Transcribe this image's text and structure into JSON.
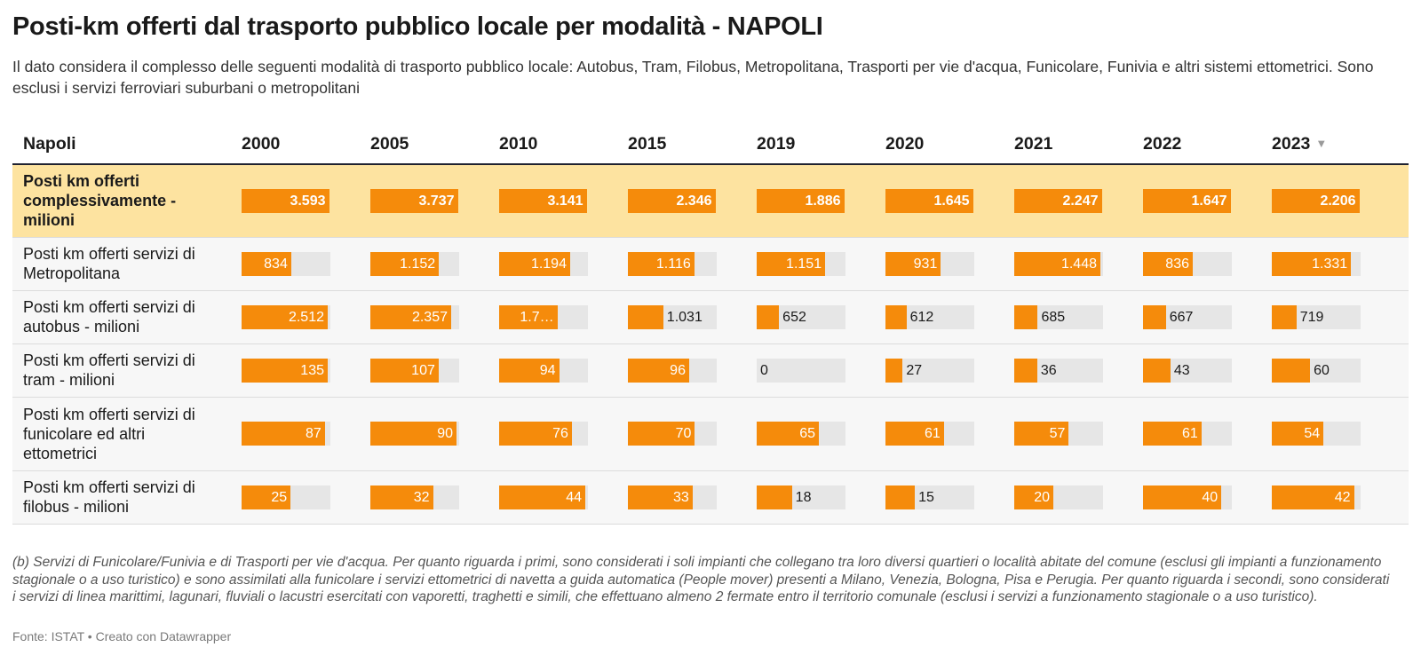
{
  "title": "Posti-km offerti dal trasporto pubblico locale per modalità - NAPOLI",
  "subtitle": "Il dato considera il complesso delle seguenti modalità di trasporto pubblico locale: Autobus, Tram, Filobus, Metropolitana, Trasporti per vie d'acqua, Funicolare, Funivia e altri sistemi ettometrici. Sono esclusi i servizi ferroviari suburbani o metropolitani",
  "table": {
    "header_label": "Napoli",
    "sort_indicator": "▼"
  },
  "chart_data": {
    "type": "table",
    "columns": [
      "2000",
      "2005",
      "2010",
      "2015",
      "2019",
      "2020",
      "2021",
      "2022",
      "2023"
    ],
    "sorted_column": "2023",
    "bar_color": "#f58b0b",
    "highlight_color": "#fde3a0",
    "rows": [
      {
        "label": "Posti km offerti complessivamente - milioni",
        "highlight": true,
        "values": [
          3593,
          3737,
          3141,
          2346,
          1886,
          1645,
          2247,
          1647,
          2206
        ],
        "labels": [
          "3.593",
          "3.737",
          "3.141",
          "2.346",
          "1.886",
          "1.645",
          "2.247",
          "1.647",
          "2.206"
        ]
      },
      {
        "label": "Posti km offerti servizi di Metropolitana",
        "values": [
          834,
          1152,
          1194,
          1116,
          1151,
          931,
          1448,
          836,
          1331
        ],
        "labels": [
          "834",
          "1.152",
          "1.194",
          "1.116",
          "1.151",
          "931",
          "1.448",
          "836",
          "1.331"
        ]
      },
      {
        "label": "Posti km offerti servizi di autobus - milioni",
        "values": [
          2512,
          2357,
          1700,
          1031,
          652,
          612,
          685,
          667,
          719
        ],
        "labels": [
          "2.512",
          "2.357",
          "1.7…",
          "1.031",
          "652",
          "612",
          "685",
          "667",
          "719"
        ]
      },
      {
        "label": "Posti km offerti servizi di tram - milioni",
        "values": [
          135,
          107,
          94,
          96,
          0,
          27,
          36,
          43,
          60
        ],
        "labels": [
          "135",
          "107",
          "94",
          "96",
          "0",
          "27",
          "36",
          "43",
          "60"
        ]
      },
      {
        "label": "Posti km offerti servizi di funicolare ed altri ettometrici",
        "values": [
          87,
          90,
          76,
          70,
          65,
          61,
          57,
          61,
          54
        ],
        "labels": [
          "87",
          "90",
          "76",
          "70",
          "65",
          "61",
          "57",
          "61",
          "54"
        ]
      },
      {
        "label": "Posti km offerti servizi di filobus - milioni",
        "values": [
          25,
          32,
          44,
          33,
          18,
          15,
          20,
          40,
          42
        ],
        "labels": [
          "25",
          "32",
          "44",
          "33",
          "18",
          "15",
          "20",
          "40",
          "42"
        ]
      }
    ]
  },
  "notes": "(b) Servizi di Funicolare/Funivia e di Trasporti per vie d'acqua. Per quanto riguarda i primi, sono considerati i soli impianti che collegano tra loro diversi quartieri o località abitate del comune (esclusi gli impianti a funzionamento stagionale o a uso turistico) e sono assimilati alla funicolare i servizi ettometrici di navetta a guida automatica (People mover) presenti a Milano, Venezia, Bologna, Pisa e Perugia. Per quanto riguarda i secondi, sono considerati i servizi di linea marittimi, lagunari, fluviali o lacustri esercitati con vaporetti, traghetti e simili, che effettuano almeno 2 fermate entro il territorio comunale (esclusi i servizi a funzionamento stagionale o a uso turistico).",
  "source": "Fonte: ISTAT • Creato con Datawrapper"
}
